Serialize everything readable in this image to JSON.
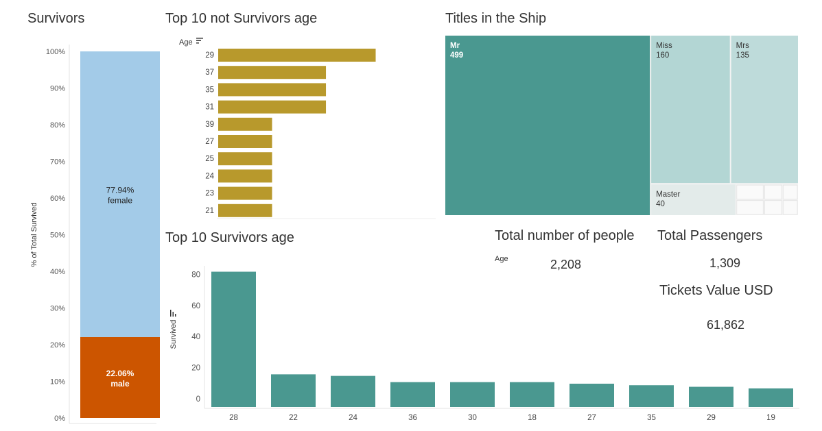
{
  "panels": {
    "survivors_title": "Survivors",
    "not_survivors_title": "Top 10 not Survivors age",
    "titles_title": "Titles in the Ship",
    "survivors_age_title": "Top 10 Survivors age"
  },
  "kpis": {
    "people_title": "Total number of people",
    "people_age_label": "Age",
    "people_value": "2,208",
    "passengers_title": "Total Passengers",
    "passengers_value": "1,309",
    "tickets_title": "Tickets Value USD",
    "tickets_value": "61,862"
  },
  "chart_data": [
    {
      "type": "bar",
      "title": "Survivors",
      "stacked": true,
      "ylabel": "% of Total Survived",
      "yticks": [
        "0%",
        "10%",
        "20%",
        "30%",
        "40%",
        "50%",
        "60%",
        "70%",
        "80%",
        "90%",
        "100%"
      ],
      "ylim": [
        0,
        100
      ],
      "segments": [
        {
          "name": "male",
          "value": 22.06,
          "label": "22.06%",
          "color": "#cc5500"
        },
        {
          "name": "female",
          "value": 77.94,
          "label": "77.94%",
          "color": "#a3cbe8"
        }
      ]
    },
    {
      "type": "bar",
      "orientation": "horizontal",
      "title": "Top 10 not Survivors age",
      "ylabel": "Age",
      "categories": [
        "29",
        "37",
        "35",
        "31",
        "39",
        "27",
        "25",
        "24",
        "23",
        "21"
      ],
      "values": [
        19,
        13,
        13,
        13,
        6.5,
        6.5,
        6.5,
        6.5,
        6.5,
        6.5
      ],
      "xlim": [
        0,
        25
      ],
      "color": "#b8992c"
    },
    {
      "type": "treemap",
      "title": "Titles in the Ship",
      "items": [
        {
          "name": "Mr",
          "value": 499,
          "label": "499",
          "color": "#4a9890"
        },
        {
          "name": "Miss",
          "value": 160,
          "label": "160",
          "color": "#b3d6d4"
        },
        {
          "name": "Mrs",
          "value": 135,
          "label": "135",
          "color": "#bedbda"
        },
        {
          "name": "Master",
          "value": 40,
          "label": "40",
          "color": "#e3ebea"
        }
      ],
      "color": "#f3f3f3"
    },
    {
      "type": "bar",
      "title": "Top 10 Survivors age",
      "ylabel": "Survived",
      "categories": [
        "28",
        "22",
        "24",
        "36",
        "30",
        "18",
        "27",
        "35",
        "29",
        "19"
      ],
      "values": [
        87,
        21,
        20,
        16,
        16,
        16,
        15,
        14,
        13,
        12
      ],
      "yticks": [
        0,
        20,
        40,
        60,
        80
      ],
      "ylim": [
        0,
        89
      ],
      "color": "#4a9890"
    }
  ]
}
